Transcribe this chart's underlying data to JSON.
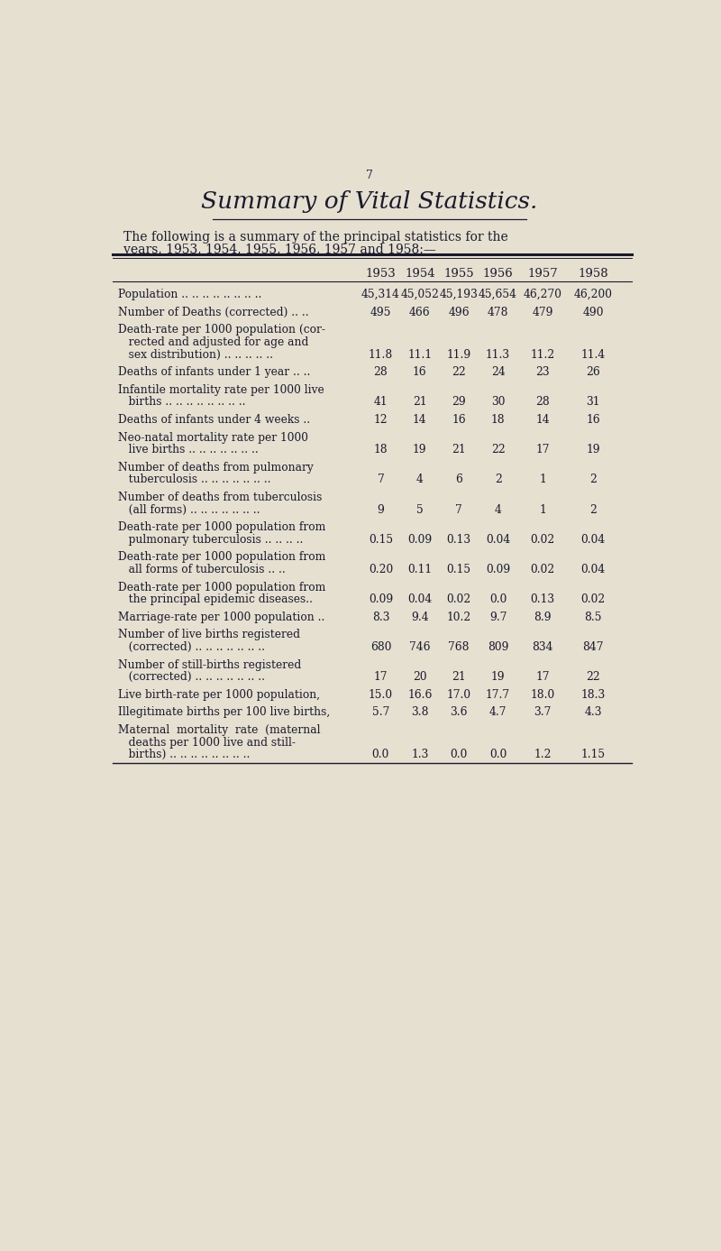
{
  "page_number": "7",
  "title": "Summary of Vital Statistics.",
  "intro_line1": "The following is a summary of the principal statistics for the",
  "intro_line2": "years, 1953, 1954, 1955, 1956, 1957 and 1958:—",
  "years": [
    "1953",
    "1954",
    "1955",
    "1956",
    "1957",
    "1958"
  ],
  "background_color": "#e5e0d0",
  "text_color": "#1a1a2e",
  "rows": [
    {
      "label_lines": [
        "Population .. .. .. .. .. .. .. .."
      ],
      "values": [
        "45,314",
        "45,052",
        "45,193",
        "45,654",
        "46,270",
        "46,200"
      ]
    },
    {
      "label_lines": [
        "Number of Deaths (corrected) .. .."
      ],
      "values": [
        "495",
        "466",
        "496",
        "478",
        "479",
        "490"
      ]
    },
    {
      "label_lines": [
        "Death-rate per 1000 population (cor-",
        "   rected and adjusted for age and",
        "   sex distribution) .. .. .. .. .."
      ],
      "values": [
        "11.8",
        "11.1",
        "11.9",
        "11.3",
        "11.2",
        "11.4"
      ]
    },
    {
      "label_lines": [
        "Deaths of infants under 1 year .. .."
      ],
      "values": [
        "28",
        "16",
        "22",
        "24",
        "23",
        "26"
      ]
    },
    {
      "label_lines": [
        "Infantile mortality rate per 1000 live",
        "   births .. .. .. .. .. .. .. .."
      ],
      "values": [
        "41",
        "21",
        "29",
        "30",
        "28",
        "31"
      ]
    },
    {
      "label_lines": [
        "Deaths of infants under 4 weeks .."
      ],
      "values": [
        "12",
        "14",
        "16",
        "18",
        "14",
        "16"
      ]
    },
    {
      "label_lines": [
        "Neo-natal mortality rate per 1000",
        "   live births .. .. .. .. .. .. .."
      ],
      "values": [
        "18",
        "19",
        "21",
        "22",
        "17",
        "19"
      ]
    },
    {
      "label_lines": [
        "Number of deaths from pulmonary",
        "   tuberculosis .. .. .. .. .. .. .."
      ],
      "values": [
        "7",
        "4",
        "6",
        "2",
        "1",
        "2"
      ]
    },
    {
      "label_lines": [
        "Number of deaths from tuberculosis",
        "   (all forms) .. .. .. .. .. .. .."
      ],
      "values": [
        "9",
        "5",
        "7",
        "4",
        "1",
        "2"
      ]
    },
    {
      "label_lines": [
        "Death-rate per 1000 population from",
        "   pulmonary tuberculosis .. .. .. .."
      ],
      "values": [
        "0.15",
        "0.09",
        "0.13",
        "0.04",
        "0.02",
        "0.04"
      ]
    },
    {
      "label_lines": [
        "Death-rate per 1000 population from",
        "   all forms of tuberculosis .. .."
      ],
      "values": [
        "0.20",
        "0.11",
        "0.15",
        "0.09",
        "0.02",
        "0.04"
      ]
    },
    {
      "label_lines": [
        "Death-rate per 1000 population from",
        "   the principal epidemic diseases.."
      ],
      "values": [
        "0.09",
        "0.04",
        "0.02",
        "0.0",
        "0.13",
        "0.02"
      ]
    },
    {
      "label_lines": [
        "Marriage-rate per 1000 population .."
      ],
      "values": [
        "8.3",
        "9.4",
        "10.2",
        "9.7",
        "8.9",
        "8.5"
      ]
    },
    {
      "label_lines": [
        "Number of live births registered",
        "   (corrected) .. .. .. .. .. .. .."
      ],
      "values": [
        "680",
        "746",
        "768",
        "809",
        "834",
        "847"
      ]
    },
    {
      "label_lines": [
        "Number of still-births registered",
        "   (corrected) .. .. .. .. .. .. .."
      ],
      "values": [
        "17",
        "20",
        "21",
        "19",
        "17",
        "22"
      ]
    },
    {
      "label_lines": [
        "Live birth-rate per 1000 population,"
      ],
      "values": [
        "15.0",
        "16.6",
        "17.0",
        "17.7",
        "18.0",
        "18.3"
      ]
    },
    {
      "label_lines": [
        "Illegitimate births per 100 live births,"
      ],
      "values": [
        "5.7",
        "3.8",
        "3.6",
        "4.7",
        "3.7",
        "4.3"
      ]
    },
    {
      "label_lines": [
        "Maternal  mortality  rate  (maternal",
        "   deaths per 1000 live and still-",
        "   births) .. .. .. .. .. .. .. .."
      ],
      "values": [
        "0.0",
        "1.3",
        "0.0",
        "0.0",
        "1.2",
        "1.15"
      ]
    }
  ]
}
